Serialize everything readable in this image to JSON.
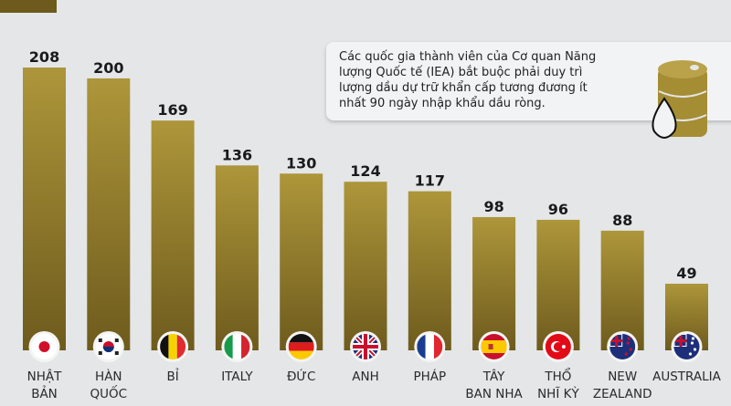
{
  "chart_data": {
    "type": "bar",
    "categories": [
      "NHẬT BẢN",
      "HÀN QUỐC",
      "BỈ",
      "ITALY",
      "ĐỨC",
      "ANH",
      "PHÁP",
      "TÂY BAN NHA",
      "THỔ NHĨ KỲ",
      "NEW ZEALAND",
      "AUSTRALIA"
    ],
    "category_lines": [
      [
        "NHẬT",
        "BẢN"
      ],
      [
        "HÀN",
        "QUỐC"
      ],
      [
        "BỈ"
      ],
      [
        "ITALY"
      ],
      [
        "ĐỨC"
      ],
      [
        "ANH"
      ],
      [
        "PHÁP"
      ],
      [
        "TÂY",
        "BAN NHA"
      ],
      [
        "THỔ",
        "NHĨ KỲ"
      ],
      [
        "NEW",
        "ZEALAND"
      ],
      [
        "AUSTRALIA"
      ]
    ],
    "values": [
      208,
      200,
      169,
      136,
      130,
      124,
      117,
      98,
      96,
      88,
      49
    ],
    "flags": [
      "japan",
      "south-korea",
      "belgium",
      "italy",
      "germany",
      "uk",
      "france",
      "spain",
      "turkey",
      "new-zealand",
      "australia"
    ],
    "ylim": [
      0,
      208
    ],
    "title": "",
    "xlabel": "",
    "ylabel": "",
    "bar_color": "#a58d34",
    "annotation": "Các quốc gia thành viên của Cơ quan Năng lượng Quốc tế (IEA) bắt buộc phải duy trì lượng dầu dự trữ khẩn cấp tương đương ít nhất 90 ngày nhập khẩu dầu ròng."
  }
}
